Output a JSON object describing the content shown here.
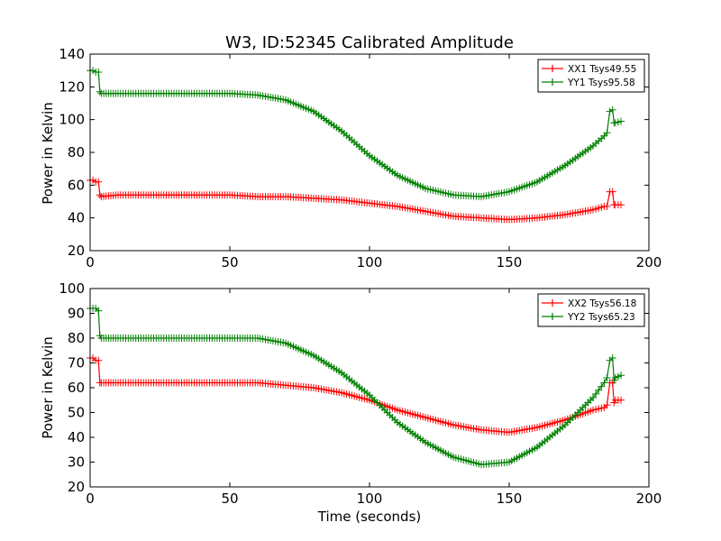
{
  "chart_data": [
    {
      "type": "line",
      "title": "W3, ID:52345 Calibrated Amplitude",
      "xlabel": "",
      "ylabel": "Power in Kelvin",
      "xlim": [
        0,
        200
      ],
      "ylim": [
        20,
        140
      ],
      "xticks": [
        0,
        50,
        100,
        150,
        200
      ],
      "yticks": [
        20,
        40,
        60,
        80,
        100,
        120,
        140
      ],
      "grid": false,
      "legend_position": "top-right",
      "marker": "plus",
      "series": [
        {
          "name": "XX1 Tsys49.55",
          "color": "#ff0000",
          "x": [
            0,
            1,
            2,
            3,
            3.5,
            4,
            10,
            20,
            30,
            40,
            50,
            60,
            70,
            80,
            90,
            100,
            110,
            120,
            130,
            140,
            150,
            160,
            170,
            180,
            184,
            185,
            186,
            187,
            187.5,
            188,
            190
          ],
          "y": [
            63,
            63,
            62,
            62,
            54,
            53,
            54,
            54,
            54,
            54,
            54,
            53,
            53,
            52,
            51,
            49,
            47,
            44,
            41,
            40,
            39,
            40,
            42,
            45,
            47,
            47,
            56,
            56,
            48,
            48,
            48
          ]
        },
        {
          "name": "YY1 Tsys95.58",
          "color": "#008000",
          "x": [
            0,
            1,
            2,
            3,
            3.5,
            4,
            10,
            20,
            30,
            40,
            50,
            60,
            70,
            80,
            90,
            100,
            110,
            120,
            130,
            140,
            150,
            160,
            170,
            180,
            184,
            185,
            186,
            187,
            187.5,
            188,
            190
          ],
          "y": [
            130,
            130,
            129,
            129,
            117,
            116,
            116,
            116,
            116,
            116,
            116,
            115,
            112,
            105,
            93,
            78,
            66,
            58,
            54,
            53,
            56,
            62,
            72,
            84,
            90,
            92,
            105,
            106,
            98,
            98,
            99
          ]
        }
      ]
    },
    {
      "type": "line",
      "title": "",
      "xlabel": "Time (seconds)",
      "ylabel": "Power in Kelvin",
      "xlim": [
        0,
        200
      ],
      "ylim": [
        20,
        100
      ],
      "xticks": [
        0,
        50,
        100,
        150,
        200
      ],
      "yticks": [
        20,
        30,
        40,
        50,
        60,
        70,
        80,
        90,
        100
      ],
      "grid": false,
      "legend_position": "top-right",
      "marker": "plus",
      "series": [
        {
          "name": "XX2 Tsys56.18",
          "color": "#ff0000",
          "x": [
            0,
            1,
            2,
            3,
            3.5,
            4,
            10,
            20,
            30,
            40,
            50,
            60,
            70,
            80,
            90,
            100,
            110,
            120,
            130,
            140,
            150,
            160,
            170,
            180,
            184,
            185,
            186,
            187,
            187.5,
            188,
            190
          ],
          "y": [
            72,
            72,
            71,
            71,
            62,
            62,
            62,
            62,
            62,
            62,
            62,
            62,
            61,
            60,
            58,
            55,
            51,
            48,
            45,
            43,
            42,
            44,
            47,
            51,
            52,
            53,
            62,
            62,
            54,
            55,
            55
          ]
        },
        {
          "name": "YY2 Tsys65.23",
          "color": "#008000",
          "x": [
            0,
            1,
            2,
            3,
            3.5,
            4,
            10,
            20,
            30,
            40,
            50,
            60,
            70,
            80,
            90,
            100,
            110,
            120,
            130,
            140,
            150,
            160,
            170,
            180,
            184,
            185,
            186,
            187,
            187.5,
            188,
            190
          ],
          "y": [
            92,
            92,
            92,
            91,
            81,
            80,
            80,
            80,
            80,
            80,
            80,
            80,
            78,
            73,
            66,
            57,
            46,
            38,
            32,
            29,
            30,
            36,
            45,
            56,
            62,
            64,
            71,
            72,
            63,
            64,
            65
          ]
        }
      ]
    }
  ]
}
